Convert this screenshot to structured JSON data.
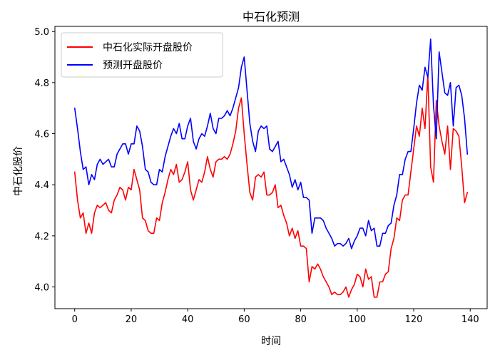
{
  "chart_data": {
    "type": "line",
    "title": "中石化预测",
    "xlabel": "时间",
    "ylabel": "中石化股价",
    "xlim": [
      -7,
      146
    ],
    "ylim": [
      3.915,
      5.02
    ],
    "xticks": [
      0,
      20,
      40,
      60,
      80,
      100,
      120,
      140
    ],
    "yticks": [
      4.0,
      4.2,
      4.4,
      4.6,
      4.8,
      5.0
    ],
    "grid": false,
    "legend_position": "top-left",
    "series": [
      {
        "name": "中石化实际开盘股价",
        "color": "#ff0000",
        "values": [
          4.45,
          4.34,
          4.27,
          4.29,
          4.21,
          4.25,
          4.21,
          4.29,
          4.32,
          4.31,
          4.32,
          4.33,
          4.3,
          4.29,
          4.34,
          4.36,
          4.39,
          4.38,
          4.34,
          4.39,
          4.38,
          4.46,
          4.42,
          4.38,
          4.27,
          4.26,
          4.22,
          4.21,
          4.21,
          4.27,
          4.26,
          4.33,
          4.37,
          4.42,
          4.46,
          4.44,
          4.48,
          4.41,
          4.42,
          4.45,
          4.49,
          4.38,
          4.34,
          4.38,
          4.42,
          4.41,
          4.45,
          4.51,
          4.46,
          4.43,
          4.49,
          4.5,
          4.5,
          4.51,
          4.5,
          4.52,
          4.56,
          4.61,
          4.7,
          4.74,
          4.6,
          4.48,
          4.37,
          4.34,
          4.43,
          4.44,
          4.43,
          4.45,
          4.36,
          4.36,
          4.37,
          4.4,
          4.31,
          4.32,
          4.28,
          4.25,
          4.2,
          4.23,
          4.19,
          4.22,
          4.16,
          4.16,
          4.15,
          4.02,
          4.08,
          4.07,
          4.09,
          4.07,
          4.04,
          4.02,
          4.0,
          3.97,
          3.98,
          3.97,
          3.97,
          3.98,
          4.0,
          3.96,
          3.99,
          4.01,
          4.05,
          4.04,
          4.0,
          4.07,
          4.03,
          4.04,
          3.96,
          3.96,
          4.02,
          4.02,
          4.05,
          4.06,
          4.15,
          4.19,
          4.27,
          4.26,
          4.34,
          4.36,
          4.36,
          4.45,
          4.54,
          4.63,
          4.59,
          4.7,
          4.62,
          4.83,
          4.47,
          4.41,
          4.73,
          4.63,
          4.57,
          4.52,
          4.63,
          4.46,
          4.62,
          4.61,
          4.59,
          4.47,
          4.33,
          4.37
        ]
      },
      {
        "name": "预测开盘股价",
        "color": "#0000ff",
        "values": [
          4.7,
          4.62,
          4.53,
          4.46,
          4.47,
          4.4,
          4.44,
          4.42,
          4.48,
          4.5,
          4.48,
          4.49,
          4.5,
          4.47,
          4.47,
          4.52,
          4.54,
          4.56,
          4.56,
          4.52,
          4.56,
          4.56,
          4.63,
          4.61,
          4.55,
          4.46,
          4.45,
          4.41,
          4.4,
          4.4,
          4.46,
          4.45,
          4.51,
          4.55,
          4.59,
          4.62,
          4.6,
          4.64,
          4.58,
          4.58,
          4.63,
          4.66,
          4.57,
          4.54,
          4.58,
          4.6,
          4.59,
          4.63,
          4.68,
          4.62,
          4.6,
          4.66,
          4.66,
          4.67,
          4.69,
          4.67,
          4.7,
          4.74,
          4.78,
          4.86,
          4.9,
          4.77,
          4.64,
          4.57,
          4.53,
          4.61,
          4.63,
          4.62,
          4.63,
          4.54,
          4.53,
          4.55,
          4.57,
          4.49,
          4.5,
          4.47,
          4.44,
          4.39,
          4.42,
          4.38,
          4.41,
          4.35,
          4.35,
          4.34,
          4.21,
          4.27,
          4.27,
          4.27,
          4.26,
          4.23,
          4.21,
          4.19,
          4.16,
          4.17,
          4.17,
          4.16,
          4.17,
          4.19,
          4.15,
          4.18,
          4.2,
          4.23,
          4.23,
          4.2,
          4.26,
          4.22,
          4.23,
          4.16,
          4.16,
          4.21,
          4.21,
          4.24,
          4.25,
          4.32,
          4.36,
          4.44,
          4.44,
          4.5,
          4.53,
          4.53,
          4.62,
          4.72,
          4.79,
          4.77,
          4.86,
          4.82,
          4.97,
          4.71,
          4.58,
          4.92,
          4.84,
          4.76,
          4.75,
          4.8,
          4.63,
          4.78,
          4.79,
          4.75,
          4.66,
          4.52
        ]
      }
    ]
  }
}
